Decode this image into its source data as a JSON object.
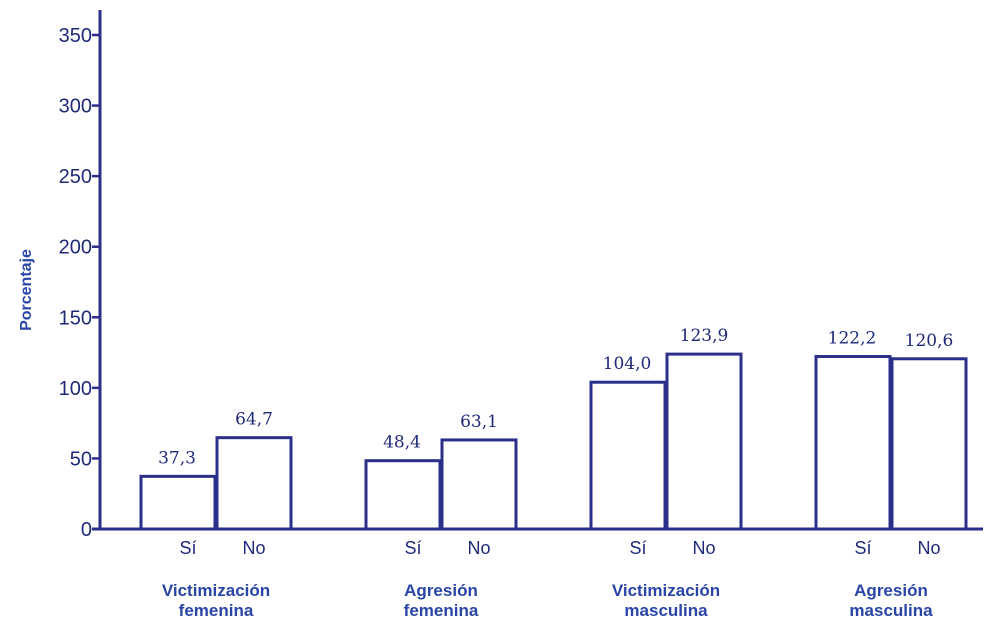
{
  "chart_data": {
    "type": "bar",
    "title": "",
    "xlabel": "",
    "ylabel": "Porcentaje",
    "ylim": [
      0,
      350
    ],
    "yticks": [
      "0",
      "50",
      "100",
      "150",
      "200",
      "250",
      "300",
      "350"
    ],
    "grid": false,
    "legend": "none",
    "groups": [
      {
        "label_lines": [
          "Victimización",
          "femenina"
        ],
        "bars": [
          {
            "label": "Sí",
            "value": 37.3,
            "value_text": "37,3"
          },
          {
            "label": "No",
            "value": 64.7,
            "value_text": "64,7"
          }
        ]
      },
      {
        "label_lines": [
          "Agresión",
          "femenina"
        ],
        "bars": [
          {
            "label": "Sí",
            "value": 48.4,
            "value_text": "48,4"
          },
          {
            "label": "No",
            "value": 63.1,
            "value_text": "63,1"
          }
        ]
      },
      {
        "label_lines": [
          "Victimización",
          "masculina"
        ],
        "bars": [
          {
            "label": "Sí",
            "value": 104.0,
            "value_text": "104,0"
          },
          {
            "label": "No",
            "value": 123.9,
            "value_text": "123,9"
          }
        ]
      },
      {
        "label_lines": [
          "Agresión",
          "masculina"
        ],
        "bars": [
          {
            "label": "Sí",
            "value": 122.2,
            "value_text": "122,2"
          },
          {
            "label": "No",
            "value": 120.6,
            "value_text": "120,6"
          }
        ]
      }
    ],
    "colors": {
      "axis": "#2b2f8a",
      "bar_outline": "#2b2f8a",
      "bar_fill": "#ffffff",
      "text": "#1f2a78",
      "group_label": "#2a45a8"
    }
  }
}
